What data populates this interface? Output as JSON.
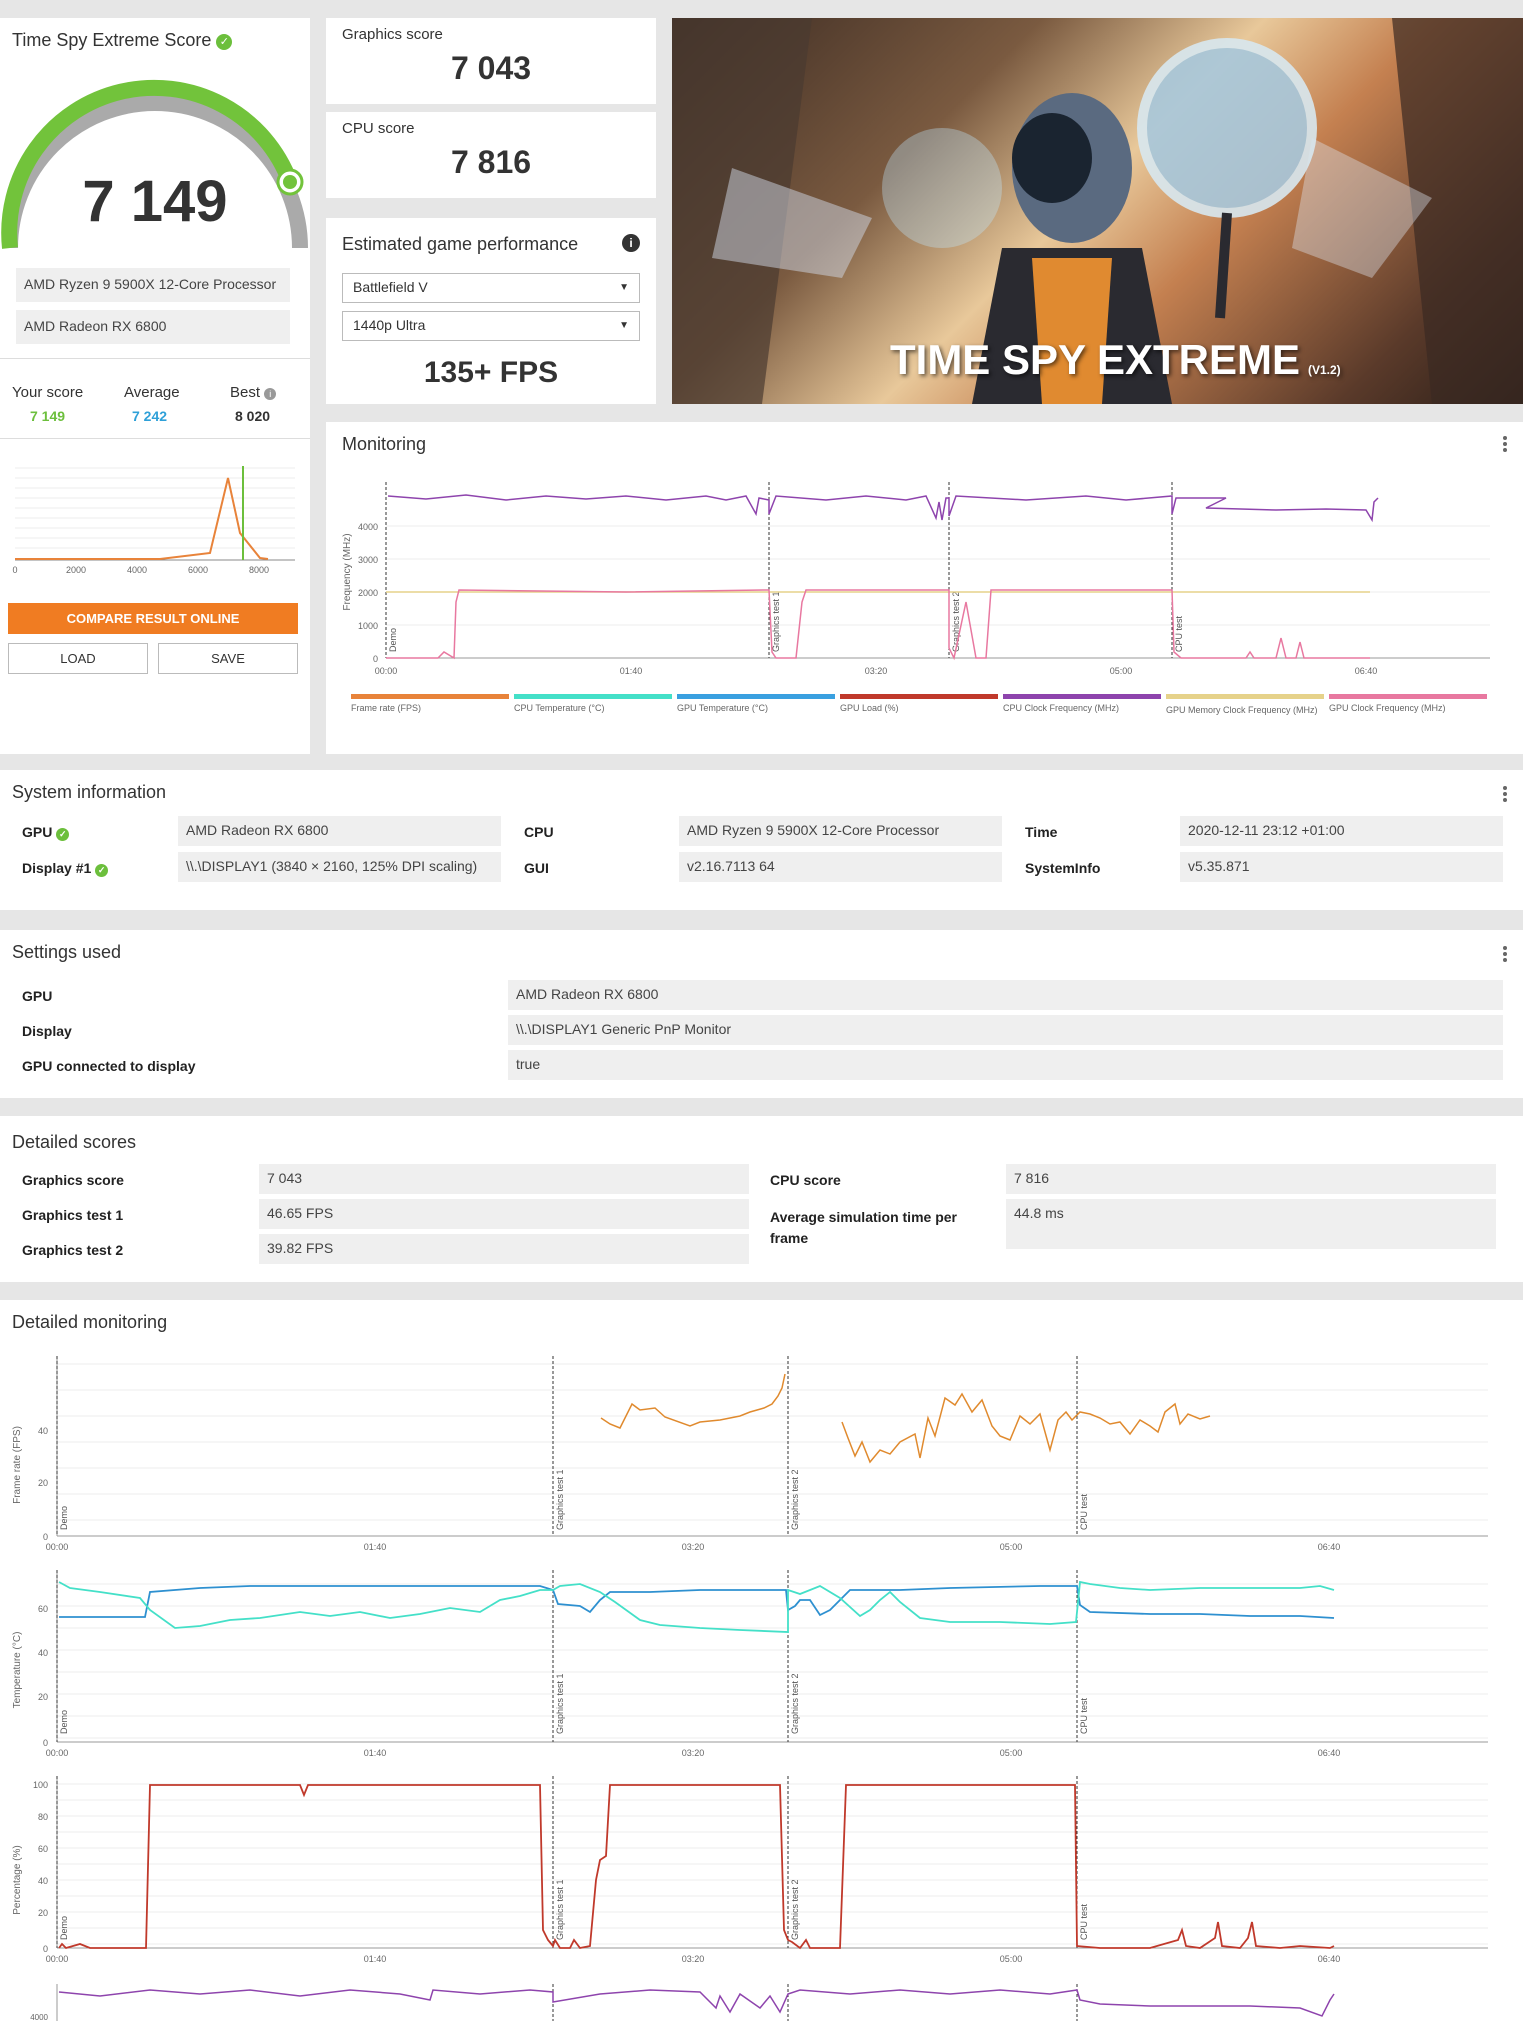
{
  "score_card": {
    "title": "Time Spy Extreme Score",
    "score": "7 149",
    "cpu": "AMD Ryzen 9 5900X 12-Core Processor",
    "gpu": "AMD Radeon RX 6800",
    "your_score_label": "Your score",
    "your_score": "7 149",
    "average_label": "Average",
    "average": "7 242",
    "best_label": "Best",
    "best": "8 020",
    "dist_ticks": [
      "0",
      "2000",
      "4000",
      "6000",
      "8000"
    ],
    "compare_label": "COMPARE RESULT ONLINE",
    "load_label": "LOAD",
    "save_label": "SAVE",
    "gauge_fraction": 0.9
  },
  "graphics": {
    "label": "Graphics score",
    "value": "7 043"
  },
  "cpu_score": {
    "label": "CPU score",
    "value": "7 816"
  },
  "game_perf": {
    "title": "Estimated game performance",
    "game": "Battlefield V",
    "preset": "1440p Ultra",
    "fps": "135+ FPS"
  },
  "banner": {
    "title": "TIME SPY EXTREME",
    "version": "(V1.2)"
  },
  "monitoring": {
    "title": "Monitoring",
    "ylabel": "Frequency (MHz)",
    "yticks": [
      "4000",
      "3000",
      "2000",
      "1000",
      "0"
    ],
    "xticks": [
      "00:00",
      "01:40",
      "03:20",
      "05:00",
      "06:40"
    ],
    "sections": [
      "Demo",
      "Graphics test 1",
      "Graphics test 2",
      "CPU test"
    ],
    "legend": [
      {
        "label": "Frame rate (FPS)",
        "color": "#e8833a"
      },
      {
        "label": "CPU Temperature (°C)",
        "color": "#44e0c8"
      },
      {
        "label": "GPU Temperature (°C)",
        "color": "#3aa0e0"
      },
      {
        "label": "GPU Load (%)",
        "color": "#c0392b"
      },
      {
        "label": "CPU Clock Frequency (MHz)",
        "color": "#8e44ad"
      },
      {
        "label": "GPU Memory Clock Frequency (MHz)",
        "color": "#e6d28a"
      },
      {
        "label": "GPU Clock Frequency (MHz)",
        "color": "#e878a0"
      }
    ]
  },
  "system_info": {
    "title": "System information",
    "gpu_label": "GPU",
    "gpu": "AMD Radeon RX 6800",
    "display_label": "Display #1",
    "display": "\\\\.\\DISPLAY1 (3840 × 2160, 125% DPI scaling)",
    "cpu_label": "CPU",
    "cpu": "AMD Ryzen 9 5900X 12-Core Processor",
    "gui_label": "GUI",
    "gui": "v2.16.7113 64",
    "time_label": "Time",
    "time": "2020-12-11 23:12 +01:00",
    "sysinfo_label": "SystemInfo",
    "sysinfo": "v5.35.871"
  },
  "settings": {
    "title": "Settings used",
    "gpu_label": "GPU",
    "gpu": "AMD Radeon RX 6800",
    "display_label": "Display",
    "display": "\\\\.\\DISPLAY1 Generic PnP Monitor",
    "connected_label": "GPU connected to display",
    "connected": "true"
  },
  "detailed": {
    "title": "Detailed scores",
    "gs_label": "Graphics score",
    "gs": "7 043",
    "gt1_label": "Graphics test 1",
    "gt1": "46.65 FPS",
    "gt2_label": "Graphics test 2",
    "gt2": "39.82 FPS",
    "cs_label": "CPU score",
    "cs": "7 816",
    "ast_label": "Average simulation time per frame",
    "ast": "44.8 ms"
  },
  "detailed_monitoring": {
    "title": "Detailed monitoring",
    "fps_ylabel": "Frame rate (FPS)",
    "fps_yticks": [
      "40",
      "20",
      "0"
    ],
    "temp_ylabel": "Temperature (°C)",
    "temp_yticks": [
      "60",
      "40",
      "20",
      "0"
    ],
    "pct_ylabel": "Percentage (%)",
    "pct_yticks": [
      "100",
      "80",
      "60",
      "40",
      "20",
      "0"
    ],
    "xticks": [
      "00:00",
      "01:40",
      "03:20",
      "05:00",
      "06:40"
    ],
    "sections": [
      "Demo",
      "Graphics test 1",
      "Graphics test 2",
      "CPU test"
    ],
    "bottom_ytick": "4000"
  }
}
